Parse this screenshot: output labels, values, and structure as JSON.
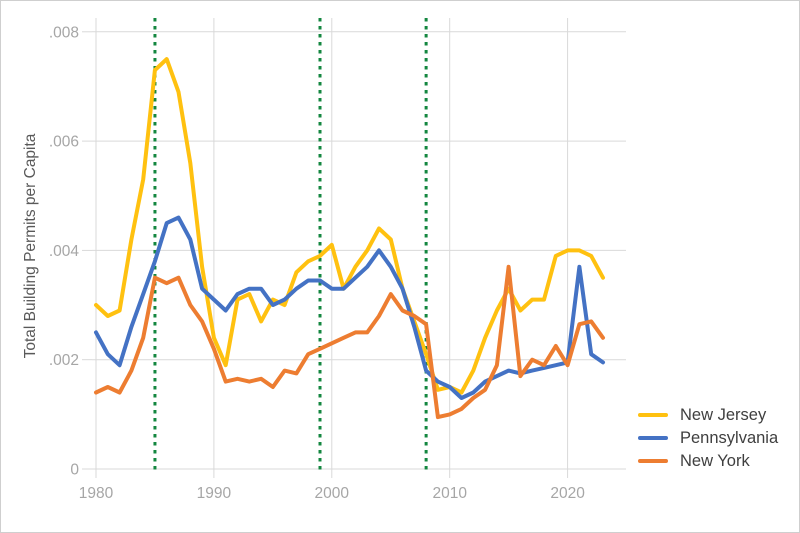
{
  "chart_data": {
    "type": "line",
    "title": "",
    "xlabel": "",
    "ylabel": "Total Building Permits per Capita",
    "grid": true,
    "legend_position": "lower right",
    "xlim": [
      1979.6,
      2024.8
    ],
    "ylim": [
      0,
      0.00825
    ],
    "x_ticks": [
      {
        "value": 1980,
        "label": "1980"
      },
      {
        "value": 1990,
        "label": "1990"
      },
      {
        "value": 2000,
        "label": "2000"
      },
      {
        "value": 2010,
        "label": "2010"
      },
      {
        "value": 2020,
        "label": "2020"
      }
    ],
    "y_ticks": [
      {
        "value": 0.008,
        "label": ".008"
      },
      {
        "value": 0.006,
        "label": ".006"
      },
      {
        "value": 0.004,
        "label": ".004"
      },
      {
        "value": 0.002,
        "label": ".002"
      },
      {
        "value": 0,
        "label": "0"
      }
    ],
    "vlines": {
      "x_values": [
        1985,
        1999,
        2008
      ],
      "color": "#148740",
      "style": "dotted"
    },
    "x": [
      1980,
      1981,
      1982,
      1983,
      1984,
      1985,
      1986,
      1987,
      1988,
      1989,
      1990,
      1991,
      1992,
      1993,
      1994,
      1995,
      1996,
      1997,
      1998,
      1999,
      2000,
      2001,
      2002,
      2003,
      2004,
      2005,
      2006,
      2007,
      2008,
      2009,
      2010,
      2011,
      2012,
      2013,
      2014,
      2015,
      2016,
      2017,
      2018,
      2019,
      2020,
      2021,
      2022,
      2023
    ],
    "series": [
      {
        "name": "New Jersey",
        "color": "#FFC110",
        "values": [
          0.003,
          0.0028,
          0.0029,
          0.0042,
          0.0053,
          0.0073,
          0.0075,
          0.0069,
          0.0056,
          0.0037,
          0.0024,
          0.0019,
          0.0031,
          0.0032,
          0.0027,
          0.0031,
          0.003,
          0.0036,
          0.0038,
          0.0039,
          0.0041,
          0.0033,
          0.0037,
          0.004,
          0.0044,
          0.0042,
          0.0033,
          0.0027,
          0.0021,
          0.00145,
          0.0015,
          0.0014,
          0.0018,
          0.0024,
          0.0029,
          0.0033,
          0.0029,
          0.0031,
          0.0031,
          0.0039,
          0.004,
          0.004,
          0.0039,
          0.0035
        ]
      },
      {
        "name": "Pennsylvania",
        "color": "#4472C4",
        "values": [
          0.0025,
          0.0021,
          0.0019,
          0.0026,
          0.0032,
          0.0038,
          0.0045,
          0.0046,
          0.0042,
          0.0033,
          0.0031,
          0.0029,
          0.0032,
          0.0033,
          0.0033,
          0.003,
          0.0031,
          0.0033,
          0.00345,
          0.00345,
          0.0033,
          0.0033,
          0.0035,
          0.0037,
          0.004,
          0.0037,
          0.0033,
          0.0026,
          0.0018,
          0.0016,
          0.0015,
          0.0013,
          0.0014,
          0.0016,
          0.0017,
          0.0018,
          0.00175,
          0.0018,
          0.00185,
          0.0019,
          0.00195,
          0.0037,
          0.0021,
          0.00195
        ]
      },
      {
        "name": "New York",
        "color": "#ED7D31",
        "values": [
          0.0014,
          0.0015,
          0.0014,
          0.0018,
          0.0024,
          0.0035,
          0.0034,
          0.0035,
          0.003,
          0.0027,
          0.0022,
          0.0016,
          0.00165,
          0.0016,
          0.00165,
          0.0015,
          0.0018,
          0.00175,
          0.0021,
          0.0022,
          0.0023,
          0.0024,
          0.0025,
          0.0025,
          0.0028,
          0.0032,
          0.0029,
          0.0028,
          0.00265,
          0.00095,
          0.001,
          0.0011,
          0.0013,
          0.00145,
          0.0019,
          0.0037,
          0.0017,
          0.002,
          0.0019,
          0.00225,
          0.0019,
          0.00265,
          0.0027,
          0.0024
        ]
      }
    ],
    "colors": {
      "gridline": "#d9d9d9",
      "tick_label": "#a6a6a6",
      "axis_title": "#595959",
      "legend_text": "#3f3f3f",
      "background": "#ffffff"
    }
  }
}
